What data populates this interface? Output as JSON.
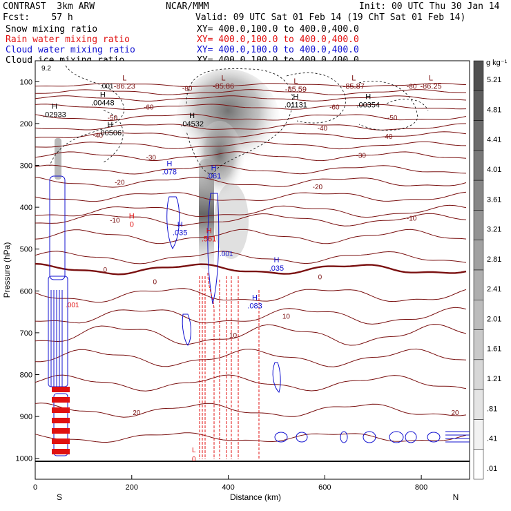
{
  "header": {
    "model": "CONTRAST  3km ARW",
    "center": "NCAR/MMM",
    "init": "Init: 00 UTC Thu 30 Jan 14",
    "fcst": "Fcst:    57 h",
    "valid": "Valid: 09 UTC Sat 01 Feb 14 (19 ChT Sat 01 Feb 14)",
    "fields": [
      {
        "name": "Snow mixing ratio",
        "xy": "XY= 400.0,100.0 to 400.0,400.0",
        "color": "#000000"
      },
      {
        "name": "Rain water mixing ratio",
        "xy": "XY= 400.0,100.0 to 400.0,400.0",
        "color": "#e01010"
      },
      {
        "name": "Cloud water mixing ratio",
        "xy": "XY= 400.0,100.0 to 400.0,400.0",
        "color": "#1010d0"
      },
      {
        "name": "Cloud ice mixing ratio",
        "xy": "XY= 400.0,100.0 to 400.0,400.0",
        "color": "#000000"
      }
    ]
  },
  "chart_data": {
    "type": "contour-cross-section",
    "xlabel": "Distance (km)",
    "ylabel": "Pressure (hPa)",
    "xlim": [
      0,
      900
    ],
    "ylim": [
      1050,
      50
    ],
    "x_ticks": [
      0,
      200,
      400,
      600,
      800
    ],
    "y_ticks": [
      100,
      200,
      300,
      400,
      500,
      600,
      700,
      800,
      900,
      1000
    ],
    "x_end_labels": {
      "left": "S",
      "right": "N"
    },
    "colorbar": {
      "unit": "g kg⁻¹",
      "labels": [
        "5.21",
        "4.81",
        "4.41",
        "4.01",
        "3.61",
        "3.21",
        "2.81",
        "2.41",
        "2.01",
        "1.61",
        "1.21",
        ".81",
        ".41",
        ".01"
      ]
    },
    "temperature_contours": {
      "color": "#7a1010",
      "interval": 10,
      "labels": [
        {
          "value": "-80",
          "x": 315,
          "p": 115
        },
        {
          "value": "-80",
          "x": 780,
          "p": 110
        },
        {
          "value": "-60",
          "x": 235,
          "p": 160
        },
        {
          "value": "-60",
          "x": 620,
          "p": 160
        },
        {
          "value": "-50",
          "x": 160,
          "p": 185
        },
        {
          "value": "-50",
          "x": 740,
          "p": 185
        },
        {
          "value": "-40",
          "x": 130,
          "p": 227
        },
        {
          "value": "-40",
          "x": 595,
          "p": 210
        },
        {
          "value": "-40",
          "x": 730,
          "p": 230
        },
        {
          "value": "-30",
          "x": 240,
          "p": 280
        },
        {
          "value": "-30",
          "x": 675,
          "p": 275
        },
        {
          "value": "-20",
          "x": 175,
          "p": 340
        },
        {
          "value": "-20",
          "x": 585,
          "p": 350
        },
        {
          "value": "-10",
          "x": 165,
          "p": 430
        },
        {
          "value": "-10",
          "x": 780,
          "p": 425
        },
        {
          "value": "0",
          "x": 145,
          "p": 548
        },
        {
          "value": "0",
          "x": 248,
          "p": 577
        },
        {
          "value": "0",
          "x": 590,
          "p": 566
        },
        {
          "value": "10",
          "x": 520,
          "p": 660
        },
        {
          "value": "10",
          "x": 410,
          "p": 705
        },
        {
          "value": "20",
          "x": 210,
          "p": 890
        },
        {
          "value": "20",
          "x": 870,
          "p": 890
        }
      ]
    },
    "extrema_labels": [
      {
        "kind": "L",
        "value": "-86.23",
        "x": 185,
        "color": "#7a1010"
      },
      {
        "kind": "L",
        "value": "-85.86",
        "x": 390,
        "color": "#7a1010"
      },
      {
        "kind": "L",
        "value": "-85.59",
        "x": 540,
        "color": "#7a1010"
      },
      {
        "kind": "L",
        "value": "-85.87",
        "x": 660,
        "color": "#7a1010"
      },
      {
        "kind": "L",
        "value": "-86.25",
        "x": 820,
        "color": "#7a1010"
      },
      {
        "kind": "H",
        "value": ".00448",
        "x": 140,
        "color": "#000000"
      },
      {
        "kind": "H",
        "value": ".02933",
        "x": 40,
        "color": "#000000"
      },
      {
        "kind": "H",
        "value": ".00506",
        "x": 155,
        "color": "#000000"
      },
      {
        "kind": "H",
        "value": ".04532",
        "x": 325,
        "color": "#000000"
      },
      {
        "kind": "H",
        "value": ".01131",
        "x": 540,
        "color": "#000000"
      },
      {
        "kind": "H",
        "value": ".00354",
        "x": 690,
        "color": "#000000"
      },
      {
        "kind": "H",
        "value": ".078",
        "x": 278,
        "color": "#1010d0"
      },
      {
        "kind": "H",
        "value": ".061",
        "x": 370,
        "color": "#1010d0"
      },
      {
        "kind": "H",
        "value": ".035",
        "x": 300,
        "color": "#1010d0"
      },
      {
        "kind": "H",
        "value": ".035",
        "x": 500,
        "color": "#1010d0"
      },
      {
        "kind": "H",
        "value": ".083",
        "x": 455,
        "color": "#1010d0"
      },
      {
        "kind": "H",
        "value": ".561",
        "x": 360,
        "color": "#e01010"
      },
      {
        "kind": "H",
        "value": "0",
        "x": 200,
        "color": "#e01010"
      }
    ],
    "misc_text": [
      {
        "text": "9.2",
        "color": "#000000"
      },
      {
        "text": ".001",
        "color": "#000000"
      },
      {
        "text": ".001",
        "color": "#1010d0"
      },
      {
        "text": ".001",
        "color": "#e01010"
      },
      {
        "text": "L",
        "color": "#e01010"
      },
      {
        "text": "0",
        "color": "#e01010"
      }
    ]
  }
}
